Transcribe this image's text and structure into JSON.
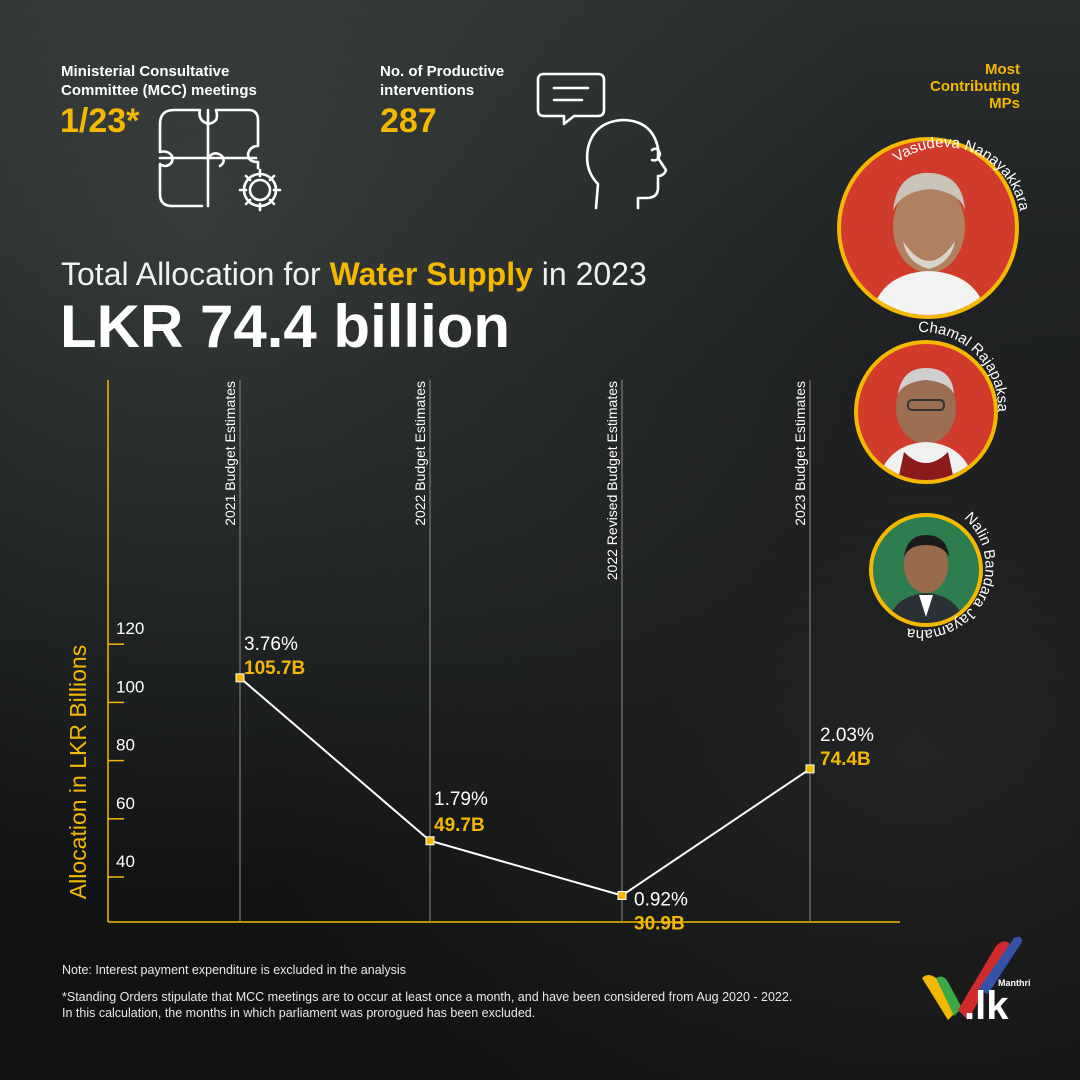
{
  "stats": {
    "mcc": {
      "label_line1": "Ministerial Consultative",
      "label_line2": "Committee (MCC) meetings",
      "value": "1/23*",
      "icon": "puzzle-gear-icon"
    },
    "interventions": {
      "label_line1": "No. of Productive",
      "label_line2": "interventions",
      "value": "287",
      "icon": "speech-head-icon"
    }
  },
  "mps": {
    "heading_line1": "Most",
    "heading_line2": "Contributing",
    "heading_line3": "MPs",
    "items": [
      {
        "name": "Vasudeva Nanayakkara"
      },
      {
        "name": "Chamal Rajapaksa"
      },
      {
        "name": "Nalin Bandara Jayamaha"
      }
    ]
  },
  "title": {
    "prefix": "Total Allocation for ",
    "highlight": "Water Supply",
    "suffix": " in 2023"
  },
  "headline": "LKR 74.4 billion",
  "chart_data": {
    "type": "line",
    "categories": [
      "2021 Budget Estimates",
      "2022 Budget Estimates",
      "2022 Revised Budget Estimates",
      "2023 Budget Estimates"
    ],
    "values": [
      105.7,
      49.7,
      30.9,
      74.4
    ],
    "value_labels": [
      "105.7B",
      "49.7B",
      "30.9B",
      "74.4B"
    ],
    "percent_labels": [
      "3.76%",
      "1.79%",
      "0.92%",
      "2.03%"
    ],
    "ylabel": "Allocation in LKR Billions",
    "yticks": [
      120,
      100,
      80,
      60,
      40
    ],
    "ylim": [
      20,
      125
    ],
    "colors": {
      "line": "#ffffff",
      "marker": "#f5b800",
      "value_label": "#f5b800",
      "axis_label": "#f5b800"
    }
  },
  "notes": {
    "note1": "Note: Interest payment expenditure is excluded in the analysis",
    "note2_line1": "*Standing Orders stipulate that MCC meetings are to occur at least once a month, and have been considered from Aug 2020 - 2022.",
    "note2_line2": "In this calculation, the months in which parliament was prorogued has been excluded."
  },
  "logo": {
    "small": "Manthri",
    "big": ".lk"
  }
}
